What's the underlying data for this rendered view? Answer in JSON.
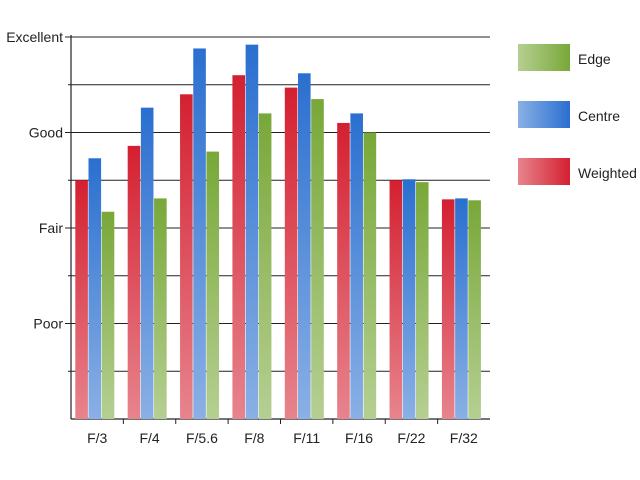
{
  "chart_data": {
    "type": "bar",
    "title": "",
    "xlabel": "",
    "ylabel": "",
    "categories": [
      "F/3",
      "F/4",
      "F/5.6",
      "F/8",
      "F/11",
      "F/16",
      "F/22",
      "F/32"
    ],
    "y_tick_labels": [
      "Poor",
      "Fair",
      "Good",
      "Excellent"
    ],
    "y_tick_values": [
      1,
      2,
      3,
      4
    ],
    "ylim": [
      0,
      4
    ],
    "grid": true,
    "legend_position": "right",
    "series": [
      {
        "name": "Weighted",
        "color": "#d42030",
        "values": [
          2.5,
          2.86,
          3.4,
          3.6,
          3.47,
          3.1,
          2.5,
          2.3
        ]
      },
      {
        "name": "Centre",
        "color": "#2a6fd0",
        "values": [
          2.73,
          3.26,
          3.88,
          3.92,
          3.62,
          3.2,
          2.51,
          2.31
        ]
      },
      {
        "name": "Edge",
        "color": "#78a838",
        "values": [
          2.17,
          2.31,
          2.8,
          3.2,
          3.35,
          3.0,
          2.48,
          2.29
        ]
      }
    ],
    "legend_order": [
      "Edge",
      "Centre",
      "Weighted"
    ]
  }
}
